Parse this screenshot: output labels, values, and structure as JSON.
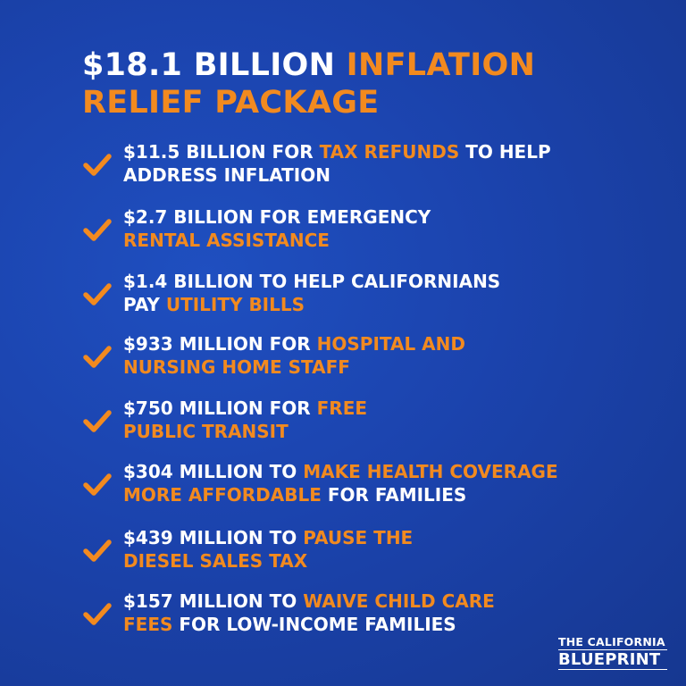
{
  "title": {
    "line1_white": "$18.1 BILLION ",
    "line1_orange": "INFLATION",
    "line2_orange": "RELIEF PACKAGE"
  },
  "items": [
    {
      "a": "$11.5 BILLION FOR ",
      "b": "TAX REFUNDS",
      "c": " TO HELP",
      "d": "ADDRESS INFLATION",
      "e": ""
    },
    {
      "a": "$2.7 BILLION FOR EMERGENCY",
      "b": "",
      "c": "",
      "d": "",
      "e": "RENTAL ASSISTANCE"
    },
    {
      "a": "$1.4 BILLION TO HELP CALIFORNIANS",
      "b": "",
      "c": "",
      "d": "PAY ",
      "e": "UTILITY BILLS"
    },
    {
      "a": "$933 MILLION FOR ",
      "b": "HOSPITAL AND",
      "c": "",
      "d": "",
      "e": "NURSING HOME STAFF"
    },
    {
      "a": "$750 MILLION FOR ",
      "b": "FREE",
      "c": "",
      "d": "",
      "e": "PUBLIC TRANSIT"
    },
    {
      "a": "$304 MILLION TO ",
      "b": "MAKE HEALTH COVERAGE",
      "c": "",
      "d": "",
      "e": "MORE AFFORDABLE",
      "f": " FOR FAMILIES"
    },
    {
      "a": "$439 MILLION TO ",
      "b": "PAUSE THE",
      "c": "",
      "d": "",
      "e": "DIESEL SALES TAX"
    },
    {
      "a": "$157 MILLION TO ",
      "b": "WAIVE CHILD CARE",
      "c": "",
      "d": "",
      "e": "FEES",
      "f": " FOR LOW-INCOME FAMILIES"
    }
  ],
  "logo": {
    "line1": "THE CALIFORNIA",
    "line2": "BLUEPRINT"
  },
  "colors": {
    "accent": "#f28a1f",
    "background": "#1b43ad",
    "text": "#ffffff"
  },
  "icons": {
    "item_marker": "checkmark-icon"
  }
}
